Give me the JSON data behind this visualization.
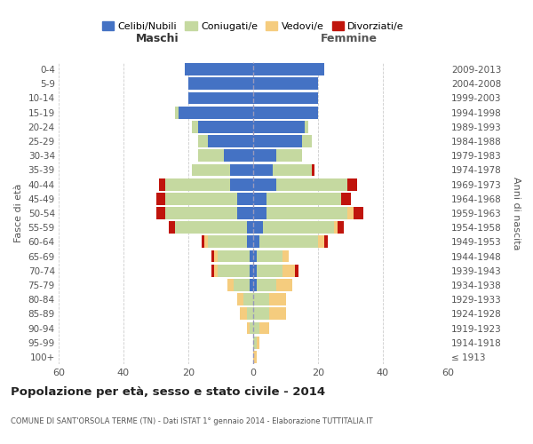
{
  "age_groups": [
    "100+",
    "95-99",
    "90-94",
    "85-89",
    "80-84",
    "75-79",
    "70-74",
    "65-69",
    "60-64",
    "55-59",
    "50-54",
    "45-49",
    "40-44",
    "35-39",
    "30-34",
    "25-29",
    "20-24",
    "15-19",
    "10-14",
    "5-9",
    "0-4"
  ],
  "birth_years": [
    "≤ 1913",
    "1914-1918",
    "1919-1923",
    "1924-1928",
    "1929-1933",
    "1934-1938",
    "1939-1943",
    "1944-1948",
    "1949-1953",
    "1954-1958",
    "1959-1963",
    "1964-1968",
    "1969-1973",
    "1974-1978",
    "1979-1983",
    "1984-1988",
    "1989-1993",
    "1994-1998",
    "1999-2003",
    "2004-2008",
    "2009-2013"
  ],
  "colors": {
    "celibi": "#4472C4",
    "coniugati": "#c5d9a0",
    "vedovi": "#f5cc7e",
    "divorziati": "#c0140c"
  },
  "males": {
    "celibi": [
      0,
      0,
      0,
      0,
      0,
      1,
      1,
      1,
      2,
      2,
      5,
      5,
      7,
      7,
      9,
      14,
      17,
      23,
      20,
      20,
      21
    ],
    "coniugati": [
      0,
      0,
      1,
      2,
      3,
      5,
      10,
      10,
      12,
      22,
      22,
      22,
      20,
      12,
      8,
      3,
      2,
      1,
      0,
      0,
      0
    ],
    "vedovi": [
      0,
      0,
      1,
      2,
      2,
      2,
      1,
      1,
      1,
      0,
      0,
      0,
      0,
      0,
      0,
      0,
      0,
      0,
      0,
      0,
      0
    ],
    "divorziati": [
      0,
      0,
      0,
      0,
      0,
      0,
      1,
      1,
      1,
      2,
      3,
      3,
      2,
      0,
      0,
      0,
      0,
      0,
      0,
      0,
      0
    ]
  },
  "females": {
    "celibi": [
      0,
      0,
      0,
      0,
      0,
      1,
      1,
      1,
      2,
      3,
      4,
      4,
      7,
      6,
      7,
      15,
      16,
      20,
      20,
      20,
      22
    ],
    "coniugati": [
      0,
      1,
      2,
      5,
      5,
      6,
      8,
      8,
      18,
      22,
      25,
      23,
      22,
      12,
      8,
      3,
      1,
      0,
      0,
      0,
      0
    ],
    "vedovi": [
      1,
      1,
      3,
      5,
      5,
      5,
      4,
      2,
      2,
      1,
      2,
      0,
      0,
      0,
      0,
      0,
      0,
      0,
      0,
      0,
      0
    ],
    "divorziati": [
      0,
      0,
      0,
      0,
      0,
      0,
      1,
      0,
      1,
      2,
      3,
      3,
      3,
      1,
      0,
      0,
      0,
      0,
      0,
      0,
      0
    ]
  },
  "xlim": 60,
  "title": "Popolazione per età, sesso e stato civile - 2014",
  "subtitle": "COMUNE DI SANT'ORSOLA TERME (TN) - Dati ISTAT 1° gennaio 2014 - Elaborazione TUTTITALIA.IT",
  "ylabel_left": "Fasce di età",
  "ylabel_right": "Anni di nascita",
  "xlabel_male": "Maschi",
  "xlabel_female": "Femmine",
  "legend_labels": [
    "Celibi/Nubili",
    "Coniugati/e",
    "Vedovi/e",
    "Divorziati/e"
  ],
  "background_color": "#ffffff",
  "grid_color": "#cccccc"
}
